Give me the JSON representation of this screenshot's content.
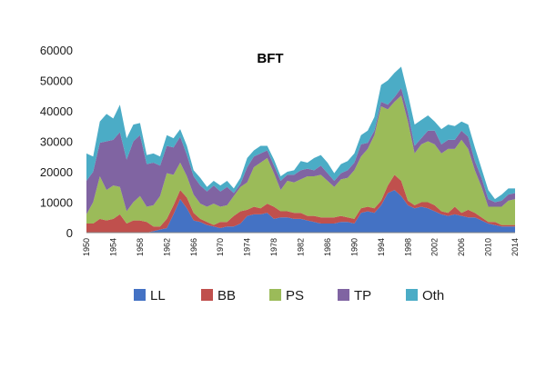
{
  "chart_data": {
    "type": "area",
    "stacked": true,
    "title": "BFT",
    "xlabel": "",
    "ylabel": "",
    "ylim": [
      0,
      60000
    ],
    "yticks": [
      "0",
      "10000",
      "20000",
      "30000",
      "40000",
      "50000",
      "60000"
    ],
    "xticks": [
      "1950",
      "1954",
      "1958",
      "1962",
      "1966",
      "1970",
      "1974",
      "1978",
      "1982",
      "1986",
      "1990",
      "1994",
      "1998",
      "2002",
      "2006",
      "2010",
      "2014"
    ],
    "grid": false,
    "legend_position": "bottom",
    "x": [
      1950,
      1951,
      1952,
      1953,
      1954,
      1955,
      1956,
      1957,
      1958,
      1959,
      1960,
      1961,
      1962,
      1963,
      1964,
      1965,
      1966,
      1967,
      1968,
      1969,
      1970,
      1971,
      1972,
      1973,
      1974,
      1975,
      1976,
      1977,
      1978,
      1979,
      1980,
      1981,
      1982,
      1983,
      1984,
      1985,
      1986,
      1987,
      1988,
      1989,
      1990,
      1991,
      1992,
      1993,
      1994,
      1995,
      1996,
      1997,
      1998,
      1999,
      2000,
      2001,
      2002,
      2003,
      2004,
      2005,
      2006,
      2007,
      2008,
      2009,
      2010,
      2011,
      2012,
      2013,
      2014
    ],
    "series": [
      {
        "name": "LL",
        "color": "#4472C4",
        "values": [
          0,
          0,
          0,
          0,
          0,
          0,
          0,
          0,
          0,
          0,
          500,
          1000,
          1500,
          6000,
          11000,
          8000,
          4000,
          3500,
          2500,
          2000,
          1500,
          2000,
          2000,
          3000,
          5500,
          6000,
          6000,
          6500,
          4500,
          5000,
          5000,
          4500,
          4500,
          4000,
          3500,
          3000,
          3000,
          3000,
          3500,
          3500,
          3000,
          6500,
          7000,
          6500,
          9000,
          13000,
          14000,
          12000,
          9000,
          8000,
          8500,
          8000,
          7000,
          6000,
          5500,
          6000,
          5500,
          5000,
          5000,
          4000,
          3000,
          2500,
          2000,
          2000,
          2000
        ]
      },
      {
        "name": "BB",
        "color": "#C0504D",
        "values": [
          3000,
          3000,
          4500,
          4000,
          4500,
          6000,
          3000,
          4000,
          4000,
          3500,
          1500,
          1000,
          3000,
          3000,
          3000,
          3500,
          2500,
          1000,
          1000,
          500,
          2000,
          1500,
          3500,
          4000,
          2000,
          2500,
          2000,
          3000,
          4000,
          2000,
          2000,
          2000,
          2000,
          1500,
          2000,
          2000,
          2000,
          2000,
          2000,
          1500,
          1500,
          1500,
          1500,
          1500,
          1500,
          2500,
          5000,
          5000,
          1500,
          1000,
          1500,
          2000,
          2000,
          1000,
          1000,
          2500,
          1000,
          2500,
          1500,
          1000,
          500,
          1000,
          500,
          500,
          500
        ]
      },
      {
        "name": "PS",
        "color": "#9BBB59",
        "values": [
          3000,
          7000,
          14000,
          10000,
          11000,
          9000,
          4000,
          6000,
          8000,
          5000,
          7000,
          10000,
          15000,
          10000,
          9000,
          7000,
          6000,
          5000,
          5000,
          7000,
          5000,
          5500,
          6500,
          8000,
          9000,
          13000,
          15000,
          15000,
          11000,
          7000,
          10000,
          10000,
          11000,
          13000,
          13000,
          14000,
          12000,
          10000,
          12000,
          13000,
          16000,
          17000,
          19000,
          24000,
          31000,
          25000,
          24000,
          28000,
          26000,
          17000,
          19000,
          20000,
          20000,
          19000,
          21000,
          19000,
          24000,
          20000,
          14000,
          10000,
          5000,
          5000,
          6000,
          8000,
          8500
        ]
      },
      {
        "name": "TP",
        "color": "#8064A2",
        "values": [
          11000,
          10000,
          11000,
          16000,
          15000,
          18000,
          17000,
          20000,
          20000,
          14000,
          14000,
          10000,
          9000,
          9000,
          8500,
          7000,
          6000,
          6000,
          5000,
          6000,
          5000,
          6000,
          1000,
          1000,
          5000,
          3500,
          3000,
          2500,
          2500,
          3000,
          2000,
          2500,
          3000,
          2500,
          2000,
          3000,
          2500,
          2000,
          2000,
          2500,
          2500,
          4000,
          2000,
          1500,
          1500,
          1500,
          1500,
          2500,
          3000,
          2500,
          2000,
          3500,
          4500,
          3000,
          3000,
          3000,
          3000,
          4000,
          3000,
          3000,
          2500,
          1500,
          2000,
          2000,
          2000
        ]
      },
      {
        "name": "Oth",
        "color": "#4BACC6",
        "values": [
          9000,
          5000,
          7000,
          9000,
          7000,
          9000,
          7000,
          5500,
          4000,
          3000,
          3000,
          3000,
          3500,
          3000,
          2500,
          3000,
          2000,
          2500,
          1500,
          1500,
          2000,
          2000,
          1500,
          2000,
          3000,
          2000,
          2500,
          1500,
          2000,
          1500,
          1000,
          1500,
          3000,
          2000,
          4000,
          3500,
          3500,
          2500,
          3000,
          3000,
          3000,
          3000,
          4000,
          4500,
          5500,
          8000,
          8000,
          7000,
          6000,
          7000,
          6000,
          5000,
          3000,
          5000,
          5000,
          4500,
          3000,
          4000,
          4500,
          3000,
          3000,
          1000,
          2000,
          2000,
          1500
        ]
      }
    ]
  }
}
